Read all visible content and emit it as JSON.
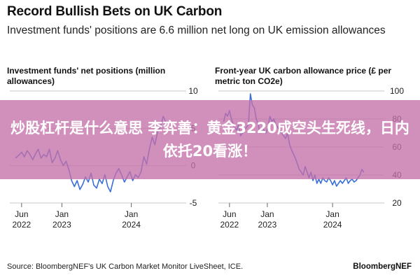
{
  "header": {
    "title": "Record Bullish Bets on UK Carbon",
    "subtitle": "Investment funds' positions are 6.6 million net long on UK emission allowances"
  },
  "footer": {
    "source": "Source: BloombergNEF's UK Carbon Market Monitor LiveSheet, ICE.",
    "brand": "BloombergNEF"
  },
  "overlay": {
    "text": "炒股杠杆是什么意思 李弈善：黄金3220成空头生死线，日内依托20看涨！"
  },
  "colors": {
    "series": "#3a6fd8",
    "grid": "#c8c8c8",
    "overlay": "#c470a8"
  },
  "chart_data": [
    {
      "type": "line",
      "title": "Investment funds' net positions (million allowances)",
      "ylim": [
        -5,
        10
      ],
      "yticks": [
        "10",
        "5",
        "0",
        "-5"
      ],
      "xticks": [
        {
          "line1": "Jun",
          "line2": "2022",
          "x": 2022.42
        },
        {
          "line1": "Jan",
          "line2": "2023",
          "x": 2023.0
        },
        {
          "line1": "Jan",
          "line2": "2024",
          "x": 2024.0
        }
      ],
      "xlim": [
        2022.25,
        2024.75
      ],
      "series": [
        {
          "x": [
            2022.33,
            2022.38,
            2022.42,
            2022.46,
            2022.5,
            2022.54,
            2022.58,
            2022.62,
            2022.66,
            2022.7,
            2022.74,
            2022.78,
            2022.82,
            2022.86,
            2022.9,
            2022.94,
            2022.98,
            2023.02,
            2023.06,
            2023.1,
            2023.14,
            2023.18,
            2023.22,
            2023.26,
            2023.3,
            2023.34,
            2023.38,
            2023.42,
            2023.46,
            2023.5,
            2023.54,
            2023.58,
            2023.62,
            2023.66,
            2023.7,
            2023.74,
            2023.78,
            2023.82,
            2023.86,
            2023.9,
            2023.94,
            2023.98,
            2024.02,
            2024.06,
            2024.1,
            2024.14,
            2024.18,
            2024.22,
            2024.26,
            2024.3,
            2024.34,
            2024.38,
            2024.42,
            2024.46,
            2024.5
          ],
          "y": [
            1.0,
            1.4,
            1.8,
            1.2,
            2.0,
            1.5,
            0.8,
            1.6,
            2.2,
            1.0,
            1.5,
            1.2,
            2.2,
            0.4,
            1.0,
            2.0,
            0.8,
            0.0,
            0.6,
            -0.5,
            -2.0,
            -2.8,
            -2.0,
            -3.2,
            -2.5,
            -1.5,
            -2.2,
            -1.0,
            -2.6,
            -3.0,
            -1.8,
            -2.4,
            -1.2,
            -2.8,
            -3.5,
            -2.0,
            -1.0,
            -0.4,
            -1.2,
            -2.2,
            -1.5,
            -0.8,
            -2.0,
            -1.2,
            -1.6,
            -0.8,
            1.2,
            0.2,
            2.2,
            3.8,
            2.8,
            4.6,
            5.2,
            6.6,
            5.8
          ]
        }
      ]
    },
    {
      "type": "line",
      "title": "Front-year UK carbon allowance price (£ per metric ton CO2e)",
      "ylim": [
        20,
        100
      ],
      "yticks": [
        "100",
        "80",
        "60",
        "40",
        "20"
      ],
      "xticks": [
        {
          "line1": "Jun",
          "line2": "2022",
          "x": 2022.42
        },
        {
          "line1": "Jan",
          "line2": "2023",
          "x": 2023.0
        },
        {
          "line1": "Jan",
          "line2": "2024",
          "x": 2024.0
        }
      ],
      "xlim": [
        2022.25,
        2024.75
      ],
      "series": [
        {
          "x": [
            2022.33,
            2022.36,
            2022.39,
            2022.42,
            2022.45,
            2022.48,
            2022.5,
            2022.53,
            2022.56,
            2022.59,
            2022.62,
            2022.65,
            2022.68,
            2022.71,
            2022.74,
            2022.77,
            2022.8,
            2022.83,
            2022.86,
            2022.89,
            2022.92,
            2022.95,
            2022.98,
            2023.01,
            2023.04,
            2023.07,
            2023.1,
            2023.13,
            2023.16,
            2023.19,
            2023.22,
            2023.25,
            2023.28,
            2023.31,
            2023.34,
            2023.37,
            2023.4,
            2023.43,
            2023.46,
            2023.49,
            2023.52,
            2023.55,
            2023.58,
            2023.61,
            2023.64,
            2023.67,
            2023.7,
            2023.73,
            2023.76,
            2023.79,
            2023.82,
            2023.85,
            2023.88,
            2023.91,
            2023.94,
            2023.97,
            2024.0,
            2024.03,
            2024.06,
            2024.09,
            2024.12,
            2024.15,
            2024.18,
            2024.21,
            2024.24,
            2024.27,
            2024.3,
            2024.33,
            2024.36,
            2024.39,
            2024.42,
            2024.45,
            2024.48
          ],
          "y": [
            78,
            84,
            82,
            86,
            80,
            76,
            74,
            72,
            76,
            68,
            70,
            72,
            74,
            76,
            98,
            90,
            88,
            80,
            76,
            70,
            74,
            72,
            70,
            74,
            82,
            78,
            80,
            76,
            74,
            72,
            70,
            68,
            66,
            70,
            62,
            58,
            55,
            52,
            48,
            44,
            42,
            40,
            46,
            42,
            38,
            42,
            36,
            40,
            34,
            37,
            34,
            38,
            36,
            35,
            38,
            36,
            33,
            36,
            32,
            34,
            36,
            34,
            36,
            38,
            34,
            36,
            37,
            35,
            36,
            38,
            40,
            44,
            42
          ]
        }
      ]
    }
  ]
}
